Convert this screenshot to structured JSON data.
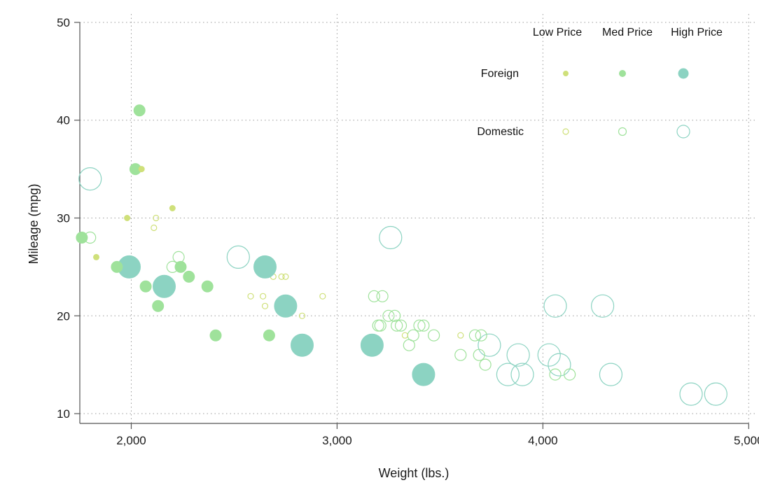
{
  "chart_data": {
    "type": "scatter",
    "xlabel": "Weight (lbs.)",
    "ylabel": "Mileage (mpg)",
    "xlim": [
      1750,
      5050
    ],
    "ylim": [
      9,
      51
    ],
    "x_ticks": [
      2000,
      3000,
      4000,
      5000
    ],
    "x_tick_labels": [
      "2,000",
      "3,000",
      "4,000",
      "5,000"
    ],
    "y_ticks": [
      10,
      20,
      30,
      40,
      50
    ],
    "y_tick_labels": [
      "10",
      "20",
      "30",
      "40",
      "50"
    ],
    "grid": true,
    "grid_style": "dotted",
    "legend": {
      "placement": "top-right",
      "column_labels": [
        "Low Price",
        "Med Price",
        "High Price"
      ],
      "row_labels": [
        "Foreign",
        "Domestic"
      ]
    },
    "price_colors": {
      "low": "#cfe07a",
      "med": "#9fe29b",
      "high": "#8cd3c2"
    },
    "encoding": "color and size by price level; filled = Foreign, hollow = Domestic",
    "series": [
      {
        "name": "Foreign",
        "filled": true,
        "points": [
          {
            "x": 1830,
            "y": 26,
            "price": "low"
          },
          {
            "x": 1980,
            "y": 30,
            "price": "low"
          },
          {
            "x": 2050,
            "y": 35,
            "price": "low"
          },
          {
            "x": 2200,
            "y": 31,
            "price": "low"
          },
          {
            "x": 1760,
            "y": 28,
            "price": "med"
          },
          {
            "x": 1930,
            "y": 25,
            "price": "med"
          },
          {
            "x": 2020,
            "y": 35,
            "price": "med"
          },
          {
            "x": 2040,
            "y": 41,
            "price": "med"
          },
          {
            "x": 2070,
            "y": 23,
            "price": "med"
          },
          {
            "x": 2130,
            "y": 21,
            "price": "med"
          },
          {
            "x": 2240,
            "y": 25,
            "price": "med"
          },
          {
            "x": 2280,
            "y": 24,
            "price": "med"
          },
          {
            "x": 2370,
            "y": 23,
            "price": "med"
          },
          {
            "x": 2410,
            "y": 18,
            "price": "med"
          },
          {
            "x": 2670,
            "y": 18,
            "price": "med"
          },
          {
            "x": 1990,
            "y": 25,
            "price": "high"
          },
          {
            "x": 2160,
            "y": 23,
            "price": "high"
          },
          {
            "x": 2650,
            "y": 25,
            "price": "high"
          },
          {
            "x": 2750,
            "y": 21,
            "price": "high"
          },
          {
            "x": 2830,
            "y": 17,
            "price": "high"
          },
          {
            "x": 3170,
            "y": 17,
            "price": "high"
          },
          {
            "x": 3420,
            "y": 14,
            "price": "high"
          }
        ]
      },
      {
        "name": "Domestic",
        "filled": false,
        "points": [
          {
            "x": 2110,
            "y": 29,
            "price": "low"
          },
          {
            "x": 2120,
            "y": 30,
            "price": "low"
          },
          {
            "x": 2580,
            "y": 22,
            "price": "low"
          },
          {
            "x": 2640,
            "y": 22,
            "price": "low"
          },
          {
            "x": 2650,
            "y": 21,
            "price": "low"
          },
          {
            "x": 2690,
            "y": 24,
            "price": "low"
          },
          {
            "x": 2730,
            "y": 24,
            "price": "low"
          },
          {
            "x": 2750,
            "y": 24,
            "price": "low"
          },
          {
            "x": 2830,
            "y": 20,
            "price": "low"
          },
          {
            "x": 2930,
            "y": 22,
            "price": "low"
          },
          {
            "x": 3330,
            "y": 18,
            "price": "low"
          },
          {
            "x": 3600,
            "y": 18,
            "price": "low"
          },
          {
            "x": 1800,
            "y": 28,
            "price": "med"
          },
          {
            "x": 2200,
            "y": 25,
            "price": "med"
          },
          {
            "x": 2230,
            "y": 26,
            "price": "med"
          },
          {
            "x": 3180,
            "y": 22,
            "price": "med"
          },
          {
            "x": 3220,
            "y": 22,
            "price": "med"
          },
          {
            "x": 3200,
            "y": 19,
            "price": "med"
          },
          {
            "x": 3210,
            "y": 19,
            "price": "med"
          },
          {
            "x": 3250,
            "y": 20,
            "price": "med"
          },
          {
            "x": 3280,
            "y": 20,
            "price": "med"
          },
          {
            "x": 3290,
            "y": 19,
            "price": "med"
          },
          {
            "x": 3310,
            "y": 19,
            "price": "med"
          },
          {
            "x": 3350,
            "y": 17,
            "price": "med"
          },
          {
            "x": 3370,
            "y": 18,
            "price": "med"
          },
          {
            "x": 3400,
            "y": 19,
            "price": "med"
          },
          {
            "x": 3420,
            "y": 19,
            "price": "med"
          },
          {
            "x": 3470,
            "y": 18,
            "price": "med"
          },
          {
            "x": 3600,
            "y": 16,
            "price": "med"
          },
          {
            "x": 3670,
            "y": 18,
            "price": "med"
          },
          {
            "x": 3690,
            "y": 16,
            "price": "med"
          },
          {
            "x": 3700,
            "y": 18,
            "price": "med"
          },
          {
            "x": 3720,
            "y": 15,
            "price": "med"
          },
          {
            "x": 4060,
            "y": 14,
            "price": "med"
          },
          {
            "x": 4130,
            "y": 14,
            "price": "med"
          },
          {
            "x": 1800,
            "y": 34,
            "price": "high"
          },
          {
            "x": 2520,
            "y": 26,
            "price": "high"
          },
          {
            "x": 3260,
            "y": 28,
            "price": "high"
          },
          {
            "x": 3740,
            "y": 17,
            "price": "high"
          },
          {
            "x": 3830,
            "y": 14,
            "price": "high"
          },
          {
            "x": 3880,
            "y": 16,
            "price": "high"
          },
          {
            "x": 3900,
            "y": 14,
            "price": "high"
          },
          {
            "x": 4030,
            "y": 16,
            "price": "high"
          },
          {
            "x": 4060,
            "y": 21,
            "price": "high"
          },
          {
            "x": 4080,
            "y": 15,
            "price": "high"
          },
          {
            "x": 4290,
            "y": 21,
            "price": "high"
          },
          {
            "x": 4330,
            "y": 14,
            "price": "high"
          },
          {
            "x": 4720,
            "y": 12,
            "price": "high"
          },
          {
            "x": 4840,
            "y": 12,
            "price": "high"
          }
        ]
      }
    ]
  }
}
